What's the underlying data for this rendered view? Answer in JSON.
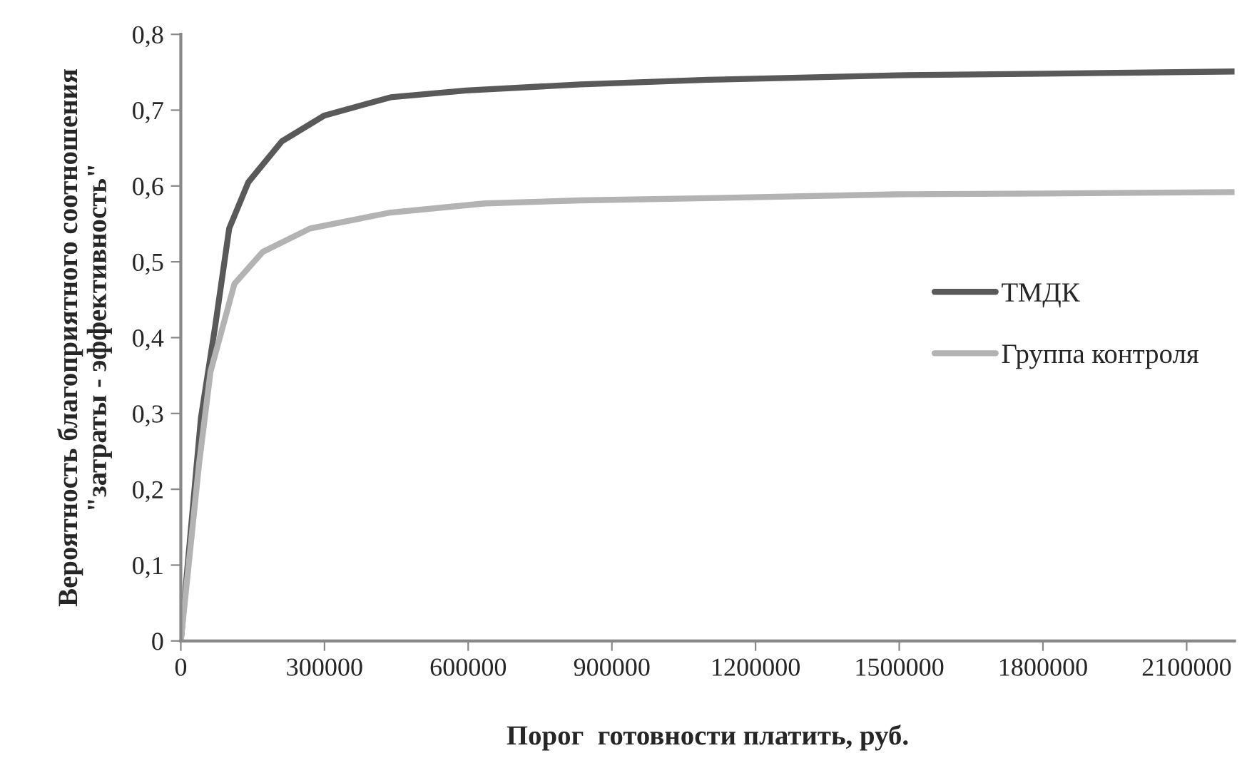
{
  "chart_data": {
    "type": "line",
    "xlabel": "Порог  готовности платить, руб.",
    "ylabel": "Вероятность благоприятного соотношения\n\"затраты - эффективность\"",
    "xlim": [
      0,
      2200000
    ],
    "xticks": [
      0,
      300000,
      600000,
      900000,
      1200000,
      1500000,
      1800000,
      2100000
    ],
    "ylim": [
      0,
      0.8
    ],
    "yticks": [
      0,
      {
        "value": 0.1,
        "label": "0,1"
      },
      {
        "value": 0.2,
        "label": "0,2"
      },
      {
        "value": 0.3,
        "label": "0,3"
      },
      {
        "value": 0.4,
        "label": "0,4"
      },
      {
        "value": 0.5,
        "label": "0,5"
      },
      {
        "value": 0.6,
        "label": "0,6"
      },
      {
        "value": 0.7,
        "label": "0,7"
      },
      {
        "value": 0.8,
        "label": "0,8"
      }
    ],
    "grid": false,
    "legend": "right",
    "marker": "none",
    "line_style": "solid",
    "series": [
      {
        "name": "ТМДК",
        "color": "#595959",
        "x": [
          0,
          42000,
          72000,
          101000,
          141000,
          211000,
          300000,
          438000,
          596000,
          834000,
          1100000,
          1496000,
          1800000,
          2200000
        ],
        "values": [
          0,
          0.294,
          0.416,
          0.544,
          0.605,
          0.659,
          0.693,
          0.717,
          0.726,
          0.734,
          0.74,
          0.746,
          0.748,
          0.751
        ]
      },
      {
        "name": "Группа контроля",
        "color": "#b3b3b3",
        "x": [
          0,
          38000,
          62000,
          112000,
          171000,
          270000,
          438000,
          635000,
          834000,
          1100000,
          1496000,
          1800000,
          2200000
        ],
        "values": [
          0,
          0.233,
          0.355,
          0.471,
          0.513,
          0.544,
          0.565,
          0.577,
          0.581,
          0.584,
          0.589,
          0.59,
          0.592
        ]
      }
    ]
  }
}
